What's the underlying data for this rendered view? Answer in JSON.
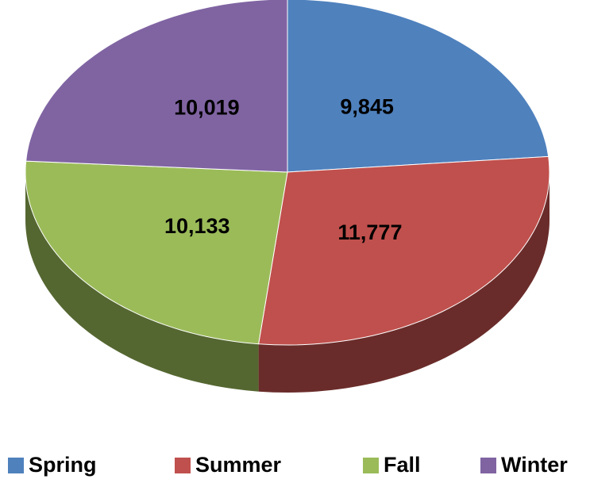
{
  "chart_data": {
    "type": "pie",
    "categories": [
      "Spring",
      "Summer",
      "Fall",
      "Winter"
    ],
    "values": [
      9845,
      11777,
      10133,
      10019
    ],
    "value_labels": [
      "9,845",
      "11,777",
      "10,133",
      "10,019"
    ],
    "colors": [
      "#4f81bd",
      "#c0504d",
      "#9bbb59",
      "#8064a2"
    ],
    "legend": "bottom"
  }
}
